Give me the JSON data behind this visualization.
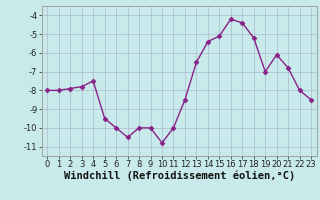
{
  "x": [
    0,
    1,
    2,
    3,
    4,
    5,
    6,
    7,
    8,
    9,
    10,
    11,
    12,
    13,
    14,
    15,
    16,
    17,
    18,
    19,
    20,
    21,
    22,
    23
  ],
  "y": [
    -8.0,
    -8.0,
    -7.9,
    -7.8,
    -7.5,
    -9.5,
    -10.0,
    -10.5,
    -10.0,
    -10.0,
    -10.8,
    -10.0,
    -8.5,
    -6.5,
    -5.4,
    -5.1,
    -4.2,
    -4.4,
    -5.2,
    -7.0,
    -6.1,
    -6.8,
    -8.0,
    -8.5
  ],
  "line_color": "#882288",
  "marker": "D",
  "markersize": 2.5,
  "linewidth": 1.0,
  "background_color": "#c8eaea",
  "grid_color": "#aab8cc",
  "xlabel": "Windchill (Refroidissement éolien,°C)",
  "xlabel_fontsize": 7.5,
  "ylim": [
    -11.5,
    -3.5
  ],
  "xlim": [
    -0.5,
    23.5
  ],
  "yticks": [
    -11,
    -10,
    -9,
    -8,
    -7,
    -6,
    -5,
    -4
  ],
  "ytick_labels": [
    "-11",
    "-10",
    "-9",
    "-8",
    "-7",
    "-6",
    "-5",
    "-4"
  ],
  "xtick_labels": [
    "0",
    "1",
    "2",
    "3",
    "4",
    "5",
    "6",
    "7",
    "8",
    "9",
    "10",
    "11",
    "12",
    "13",
    "14",
    "15",
    "16",
    "17",
    "18",
    "19",
    "20",
    "21",
    "22",
    "23"
  ],
  "tick_fontsize": 6.0
}
